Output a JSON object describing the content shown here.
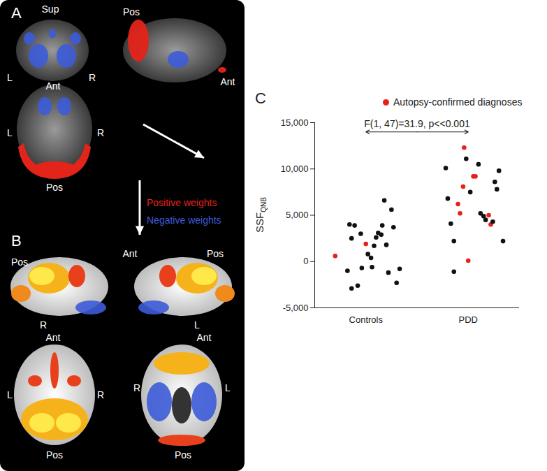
{
  "figure": {
    "panel_a": {
      "label": "A",
      "coronal": {
        "top": "Sup",
        "left": "L",
        "right": "R"
      },
      "sagittal": {
        "left": "Pos",
        "right": "Ant"
      },
      "axial": {
        "top": "Ant",
        "left": "L",
        "right": "R",
        "bottom": "Pos"
      },
      "legend": [
        {
          "text": "Positive weights",
          "color": "#e3241b"
        },
        {
          "text": "Negative weights",
          "color": "#3c5bd8"
        }
      ]
    },
    "panel_b": {
      "label": "B",
      "right_lateral": {
        "top_left": "Pos",
        "bottom": "R"
      },
      "left_lateral": {
        "top_left": "Ant",
        "top_right": "Pos",
        "bottom": "L"
      },
      "dorsal": {
        "top": "Ant",
        "left": "L",
        "right": "R",
        "bottom": "Pos"
      },
      "ventral": {
        "top": "Ant",
        "left": "R",
        "right": "L",
        "bottom": "Pos"
      }
    }
  },
  "chart_data": {
    "type": "scatter",
    "panel": "C",
    "y_label": {
      "text": "SSF",
      "subscript": "QNB"
    },
    "xlim": [
      0.5,
      2.5
    ],
    "xticks": [
      {
        "value": 1,
        "label": "Controls"
      },
      {
        "value": 2,
        "label": "PDD"
      }
    ],
    "ylim": [
      -5000,
      15000
    ],
    "yticks": [
      {
        "value": -5000,
        "label": "-5,000"
      },
      0,
      {
        "value": 5000,
        "label": "5,000"
      },
      {
        "value": 10000,
        "label": "10,000"
      },
      {
        "value": 15000,
        "label": "15,000"
      }
    ],
    "grid": false,
    "legend": "top-right",
    "annotations": [
      {
        "text": "F(1, 47)=31.9, p<<0.001",
        "x": [
          1,
          2
        ],
        "y": 14000
      }
    ],
    "series": [
      {
        "name": "Autopsy-confirmed diagnoses",
        "color": "#e3241b",
        "marker": "circle",
        "x": [
          0.7,
          1.0,
          1.9,
          1.92,
          1.95,
          1.96,
          2.0,
          2.05,
          2.07,
          2.2,
          2.22
        ],
        "values": [
          600,
          1900,
          6200,
          5200,
          8100,
          12300,
          100,
          9200,
          9200,
          5000,
          4000
        ]
      },
      {
        "color": "#111111",
        "marker": "circle",
        "x": [
          0.84,
          0.89,
          0.95,
          0.86,
          0.82,
          0.86,
          0.92,
          0.96,
          1.02,
          1.05,
          1.06,
          1.08,
          1.1,
          1.12,
          1.15,
          1.16,
          1.18,
          1.2,
          1.22,
          1.25,
          1.27,
          1.3,
          1.33,
          1.78,
          1.8,
          1.83,
          1.86,
          1.86,
          1.98,
          2.02,
          2.1,
          2.12,
          2.15,
          2.17,
          2.24,
          2.26,
          2.28,
          2.3,
          2.34
        ],
        "values": [
          4000,
          3900,
          3000,
          2500,
          -1000,
          -2900,
          -2600,
          -700,
          800,
          400,
          -600,
          1700,
          2600,
          3100,
          2900,
          3900,
          6600,
          1800,
          -1200,
          5600,
          3700,
          -2300,
          -800,
          10100,
          6800,
          4100,
          2200,
          -1100,
          11100,
          7500,
          10500,
          5200,
          4900,
          4500,
          4300,
          8600,
          7800,
          9800,
          2200
        ]
      }
    ]
  }
}
